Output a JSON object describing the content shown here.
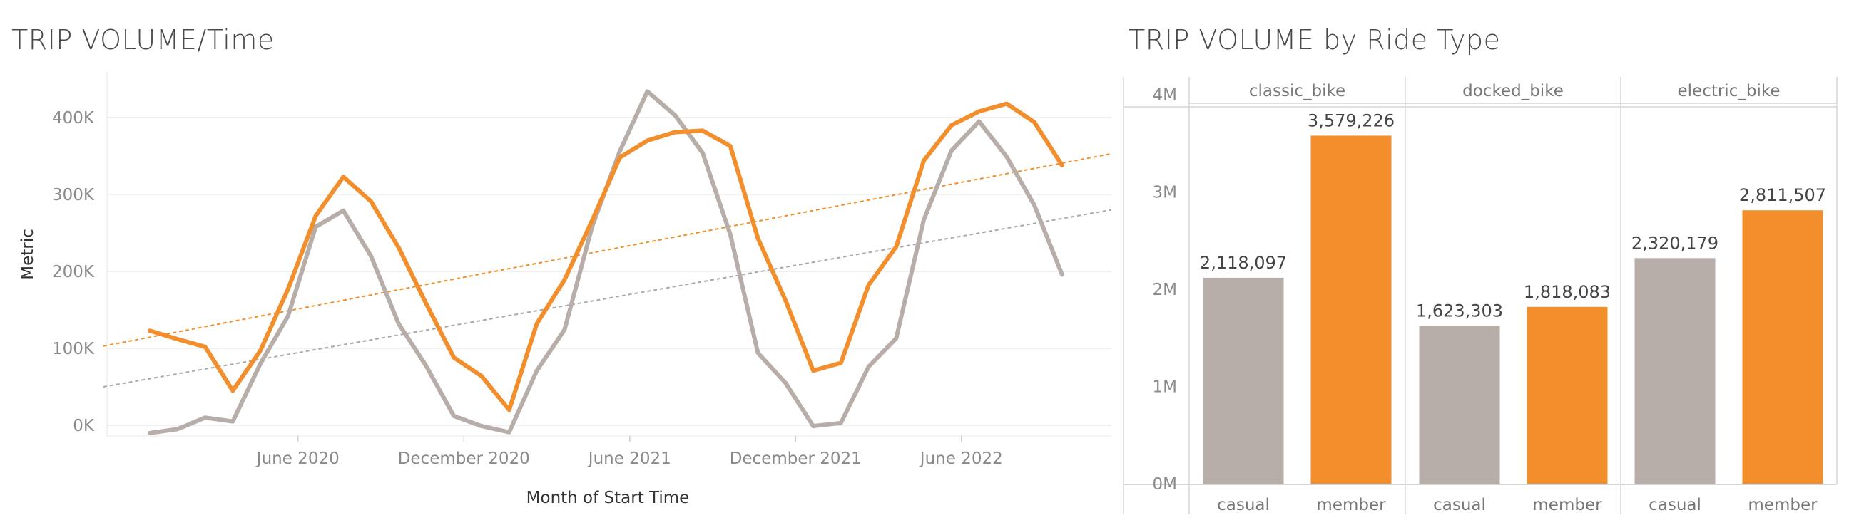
{
  "colors": {
    "casual": "#b7aea9",
    "member": "#f28e2b",
    "gridline": "#ececec",
    "axis": "#d6d6d6"
  },
  "chart_data": [
    {
      "type": "line",
      "title": "TRIP VOLUME/Time",
      "xlabel": "Month of Start Time",
      "ylabel": "Metric",
      "x_tick_labels": [
        "June 2020",
        "December 2020",
        "June 2021",
        "December 2021",
        "June 2022"
      ],
      "y_tick_labels": [
        "0K",
        "100K",
        "200K",
        "300K",
        "400K"
      ],
      "y_ticks": [
        0,
        100000,
        200000,
        300000,
        400000
      ],
      "ylim": [
        -20000,
        460000
      ],
      "x": [
        "2020-01",
        "2020-02",
        "2020-03",
        "2020-04",
        "2020-05",
        "2020-06",
        "2020-07",
        "2020-08",
        "2020-09",
        "2020-10",
        "2020-11",
        "2020-12",
        "2021-01",
        "2021-02",
        "2021-03",
        "2021-04",
        "2021-05",
        "2021-06",
        "2021-07",
        "2021-08",
        "2021-09",
        "2021-10",
        "2021-11",
        "2021-12",
        "2022-01",
        "2022-02",
        "2022-03",
        "2022-04",
        "2022-05",
        "2022-06",
        "2022-07",
        "2022-08",
        "2022-09",
        "2022-10",
        "2022-11"
      ],
      "series": [
        {
          "key": "member",
          "values": [
            123000,
            112000,
            102000,
            45000,
            97000,
            177000,
            272000,
            323000,
            291000,
            231000,
            158000,
            88000,
            64000,
            20000,
            132000,
            189000,
            266000,
            348000,
            370000,
            381000,
            383000,
            363000,
            243000,
            162000,
            71000,
            81000,
            182000,
            232000,
            344000,
            390000,
            408000,
            418000,
            394000,
            338000,
            null
          ]
        },
        {
          "key": "casual",
          "values": [
            -10000,
            -5000,
            10000,
            5000,
            80000,
            142000,
            258000,
            279000,
            220000,
            132000,
            77000,
            12000,
            -1000,
            -9000,
            71000,
            124000,
            258000,
            356000,
            434000,
            403000,
            354000,
            248000,
            94000,
            55000,
            -1000,
            3000,
            76000,
            113000,
            267000,
            357000,
            395000,
            349000,
            286000,
            196000,
            null
          ]
        }
      ],
      "trend_lines": [
        {
          "key": "member",
          "start": 103000,
          "end": 353000
        },
        {
          "key": "casual",
          "start": 50000,
          "end": 280000
        }
      ]
    },
    {
      "type": "bar",
      "title": "TRIP VOLUME by Ride Type",
      "panels": [
        "classic_bike",
        "docked_bike",
        "electric_bike"
      ],
      "categories": [
        "casual",
        "member"
      ],
      "y_tick_labels": [
        "0M",
        "1M",
        "2M",
        "3M",
        "4M"
      ],
      "y_ticks": [
        0,
        1000000,
        2000000,
        3000000,
        4000000
      ],
      "ylim": [
        0,
        4000000
      ],
      "values": [
        [
          2118097,
          3579226
        ],
        [
          1623303,
          1818083
        ],
        [
          2320179,
          2811507
        ]
      ],
      "value_labels": [
        [
          "2,118,097",
          "3,579,226"
        ],
        [
          "1,623,303",
          "1,818,083"
        ],
        [
          "2,320,179",
          "2,811,507"
        ]
      ]
    }
  ]
}
